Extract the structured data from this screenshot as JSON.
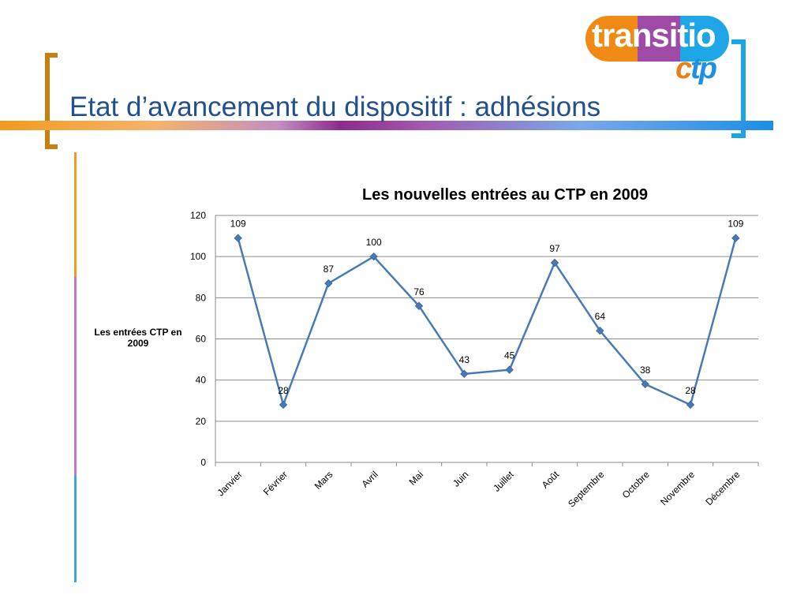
{
  "slide": {
    "title": "Etat d’avancement du dispositif : adhésions"
  },
  "logo": {
    "word_part1": "tran",
    "word_part2": "sitio",
    "sub_part1": "c",
    "sub_part2": "tp",
    "colors": [
      "#f08a14",
      "#a04aa8",
      "#1ea6e6"
    ]
  },
  "colors": {
    "title": "#23508d",
    "series_line": "#4a7ab5",
    "grid": "#8c8c8c"
  },
  "chart_data": {
    "type": "line",
    "title": "Les nouvelles entrées  au CTP en 2009",
    "categories": [
      "Janvier",
      "Février",
      "Mars",
      "Avril",
      "Mai",
      "Juin",
      "Juillet",
      "Août",
      "Septembre",
      "Octobre",
      "Novembre",
      "Décembre"
    ],
    "series": [
      {
        "name": "Les entrées CTP en 2009",
        "values": [
          109,
          28,
          87,
          100,
          76,
          43,
          45,
          97,
          64,
          38,
          28,
          109
        ]
      }
    ],
    "ylim": [
      0,
      120
    ],
    "yticks": [
      0,
      20,
      40,
      60,
      80,
      100,
      120
    ],
    "grid": true,
    "legend_position": "left",
    "data_labels": true,
    "marker": "diamond"
  }
}
